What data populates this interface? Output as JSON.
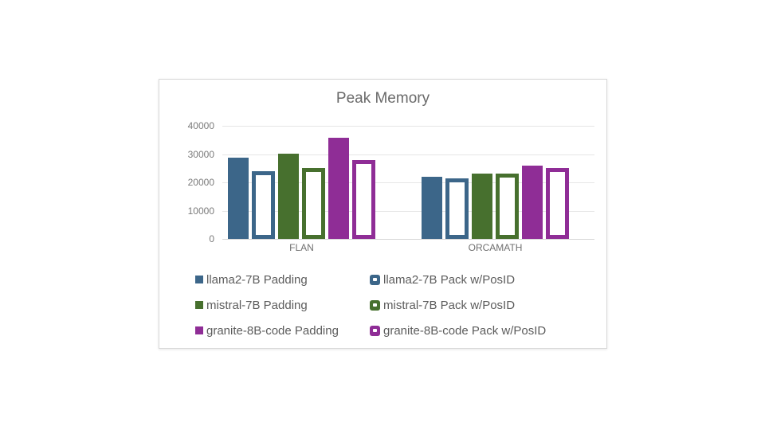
{
  "chart_data": {
    "type": "bar",
    "title": "Peak Memory",
    "categories": [
      "FLAN",
      "ORCAMATH"
    ],
    "series": [
      {
        "name": "llama2-7B Padding",
        "style": "solid",
        "color": "#3C6689",
        "values": [
          28800,
          22000
        ]
      },
      {
        "name": "llama2-7B Pack w/PosID",
        "style": "outline",
        "color": "#3C6689",
        "values": [
          24000,
          21500
        ]
      },
      {
        "name": "mistral-7B Padding",
        "style": "solid",
        "color": "#47702E",
        "values": [
          30200,
          23000
        ]
      },
      {
        "name": "mistral-7B Pack w/PosID",
        "style": "outline",
        "color": "#47702E",
        "values": [
          25000,
          23100
        ]
      },
      {
        "name": "granite-8B-code Padding",
        "style": "solid",
        "color": "#8F2D96",
        "values": [
          35700,
          26000
        ]
      },
      {
        "name": "granite-8B-code Pack w/PosID",
        "style": "outline",
        "color": "#8F2D96",
        "values": [
          27800,
          25000
        ]
      }
    ],
    "ylim": [
      0,
      40000
    ],
    "yticks": [
      0,
      10000,
      20000,
      30000,
      40000
    ],
    "grid": true,
    "legend_position": "bottom",
    "legend_columns": 2
  }
}
